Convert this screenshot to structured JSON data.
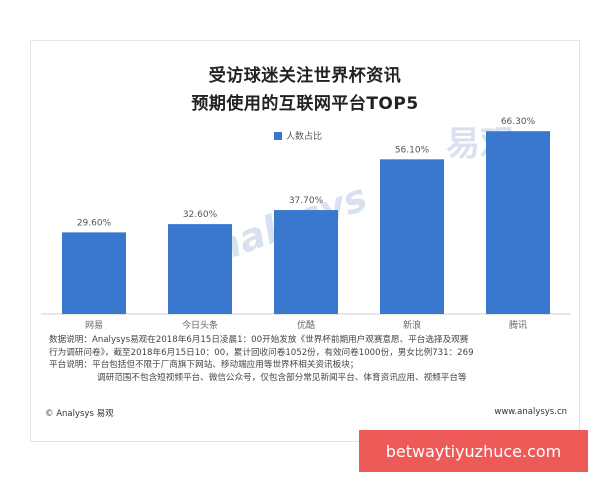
{
  "chart_data": {
    "type": "bar",
    "title_lines": [
      "受访球迷关注世界杯资讯",
      "预期使用的互联网平台TOP5"
    ],
    "legend": "人数占比",
    "categories": [
      "网易",
      "今日头条",
      "优酷",
      "新浪",
      "腾讯"
    ],
    "values": [
      29.6,
      32.6,
      37.7,
      56.1,
      66.3
    ],
    "value_labels": [
      "29.60%",
      "32.60%",
      "37.70%",
      "56.10%",
      "66.30%"
    ],
    "ylim": [
      0,
      70
    ],
    "bar_color": "#3a78d0"
  },
  "notes": [
    "数据说明：Analysys易观在2018年6月15日凌晨1：00开始发放《世界杯前期用户观赛意愿、平台选择及观赛",
    "行为调研问卷》，截至2018年6月15日10：00，累计回收问卷1052份，有效问卷1000份，男女比例731：269",
    "平台说明：平台包括但不限于厂商旗下网站、移动端应用等世界杯相关资讯板块；",
    "调研范围不包含短视频平台、微信公众号，仅包含部分常见新闻平台、体育资讯应用、视频平台等"
  ],
  "footer": {
    "copyright": "© Analysys 易观",
    "website": "www.analysys.cn"
  },
  "banner": "betwaytiyuzhuce.com"
}
